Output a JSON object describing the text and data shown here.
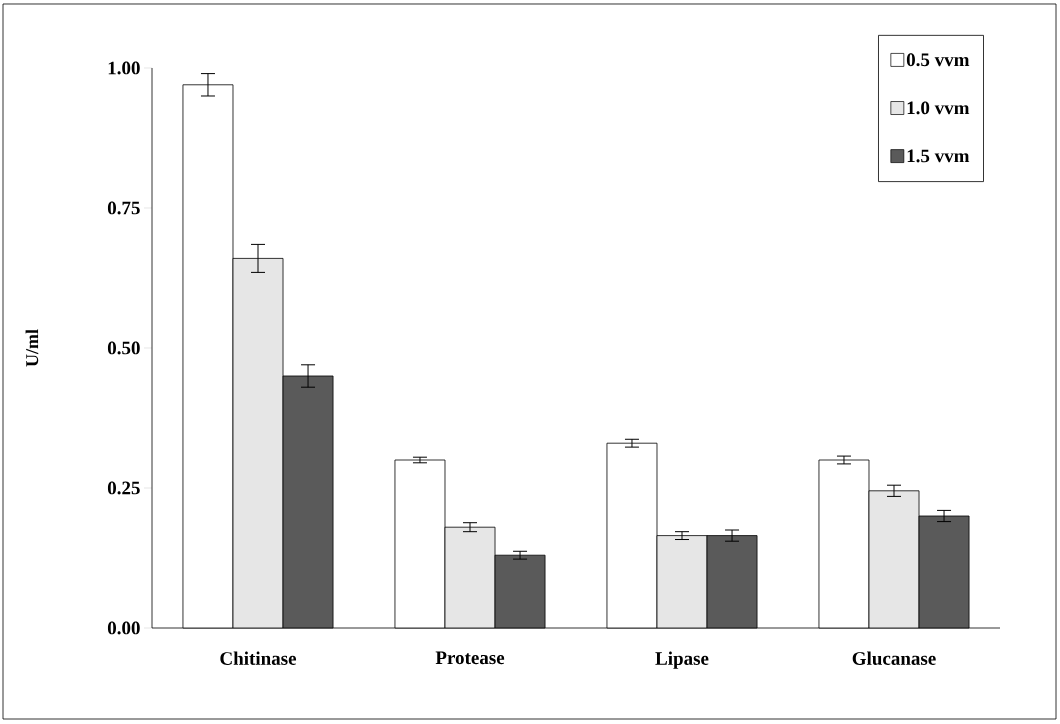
{
  "chart_data": {
    "type": "bar",
    "ylabel": "U/ml",
    "categories": [
      "Chitinase",
      "Protease",
      "Lipase",
      "Glucanase"
    ],
    "series": [
      {
        "name": "0.5 vvm",
        "color": "#ffffff",
        "values": [
          0.97,
          0.3,
          0.33,
          0.3
        ],
        "errors": [
          0.02,
          0.005,
          0.007,
          0.007
        ]
      },
      {
        "name": "1.0 vvm",
        "color": "#e6e6e6",
        "values": [
          0.66,
          0.18,
          0.165,
          0.245
        ],
        "errors": [
          0.025,
          0.008,
          0.007,
          0.01
        ]
      },
      {
        "name": "1.5 vvm",
        "color": "#5a5a5a",
        "values": [
          0.45,
          0.13,
          0.165,
          0.2
        ],
        "errors": [
          0.02,
          0.007,
          0.01,
          0.01
        ]
      }
    ],
    "ylim": [
      0,
      1
    ],
    "yticks": [
      {
        "value": 0,
        "label": "0.00"
      },
      {
        "value": 0.25,
        "label": "0.25"
      },
      {
        "value": 0.5,
        "label": "0.50"
      },
      {
        "value": 0.75,
        "label": "0.75"
      },
      {
        "value": 1,
        "label": "1.00"
      }
    ],
    "legend": "top right",
    "grid": false
  }
}
